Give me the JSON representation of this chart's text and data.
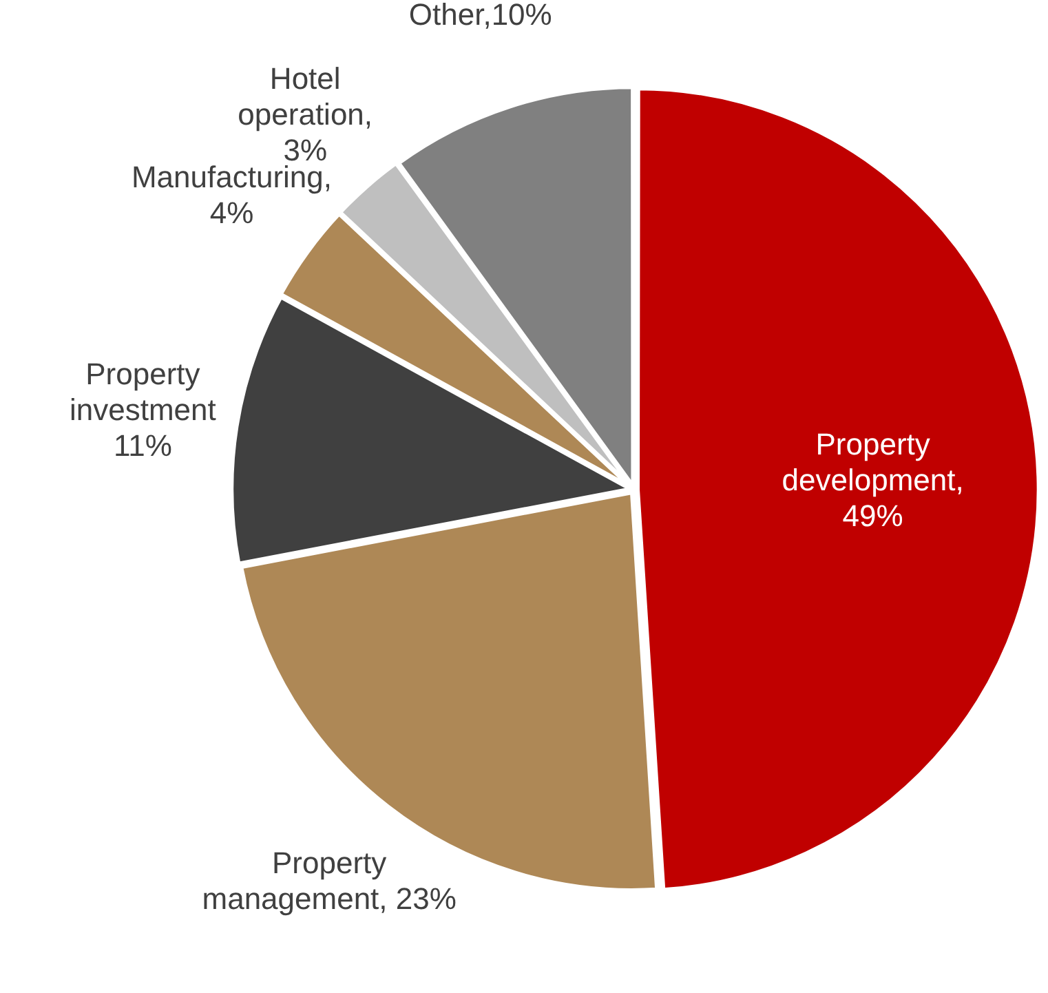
{
  "chart_data": {
    "type": "pie",
    "categories": [
      "Property development",
      "Property management",
      "Property investment",
      "Manufacturing",
      "Hotel operation",
      "Other"
    ],
    "values": [
      49,
      23,
      11,
      4,
      3,
      10
    ],
    "colors": [
      "#c00000",
      "#ae8856",
      "#404040",
      "#ae8856",
      "#bfbfbf",
      "#808080"
    ],
    "value_labels": [
      ",\n49%",
      ", 23%",
      "\n11%",
      ",\n4%",
      ",\n3%",
      ",10%"
    ],
    "legend": false
  }
}
